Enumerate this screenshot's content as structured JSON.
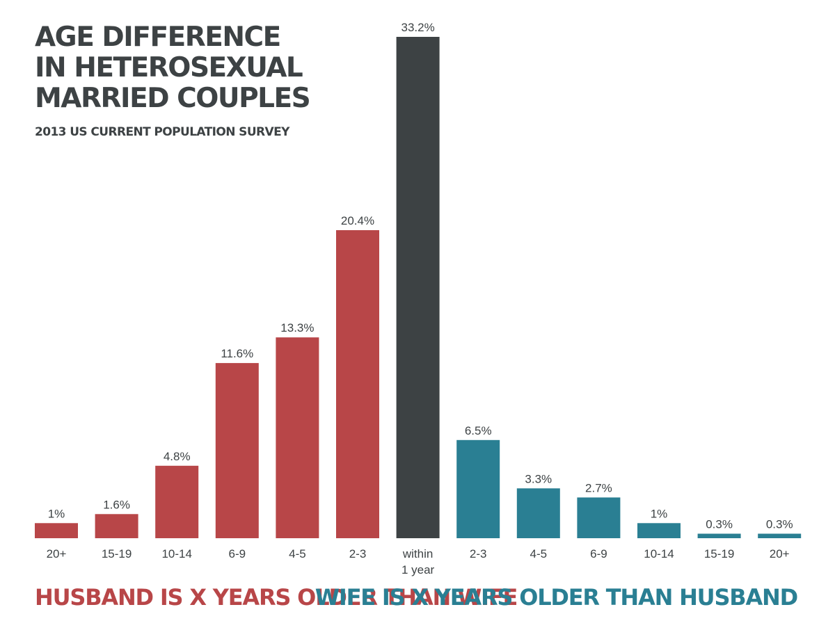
{
  "chart_data": {
    "type": "bar",
    "title_lines": [
      "AGE DIFFERENCE",
      "IN HETEROSEXUAL",
      "MARRIED COUPLES"
    ],
    "subtitle": "2013 US CURRENT POPULATION SURVEY",
    "unit": "%",
    "categories": [
      [
        "20+"
      ],
      [
        "15-19"
      ],
      [
        "10-14"
      ],
      [
        "6-9"
      ],
      [
        "4-5"
      ],
      [
        "2-3"
      ],
      [
        "within",
        "1 year"
      ],
      [
        "2-3"
      ],
      [
        "4-5"
      ],
      [
        "6-9"
      ],
      [
        "10-14"
      ],
      [
        "15-19"
      ],
      [
        "20+"
      ]
    ],
    "values": [
      1,
      1.6,
      4.8,
      11.6,
      13.3,
      20.4,
      33.2,
      6.5,
      3.3,
      2.7,
      1,
      0.3,
      0.3
    ],
    "value_labels": [
      "1%",
      "1.6%",
      "4.8%",
      "11.6%",
      "13.3%",
      "20.4%",
      "33.2%",
      "6.5%",
      "3.3%",
      "2.7%",
      "1%",
      "0.3%",
      "0.3%"
    ],
    "groups": [
      "husband",
      "husband",
      "husband",
      "husband",
      "husband",
      "husband",
      "neutral",
      "wife",
      "wife",
      "wife",
      "wife",
      "wife",
      "wife"
    ],
    "group_labels": {
      "husband": "HUSBAND IS X YEARS OLDER THAN WIFE",
      "wife": "WIFE IS X YEARS OLDER THAN HUSBAND"
    },
    "colors": {
      "husband": "#b84648",
      "neutral": "#3d4244",
      "wife": "#2a7f93",
      "text": "#3d4244"
    },
    "ylim": [
      0,
      33.2
    ]
  }
}
